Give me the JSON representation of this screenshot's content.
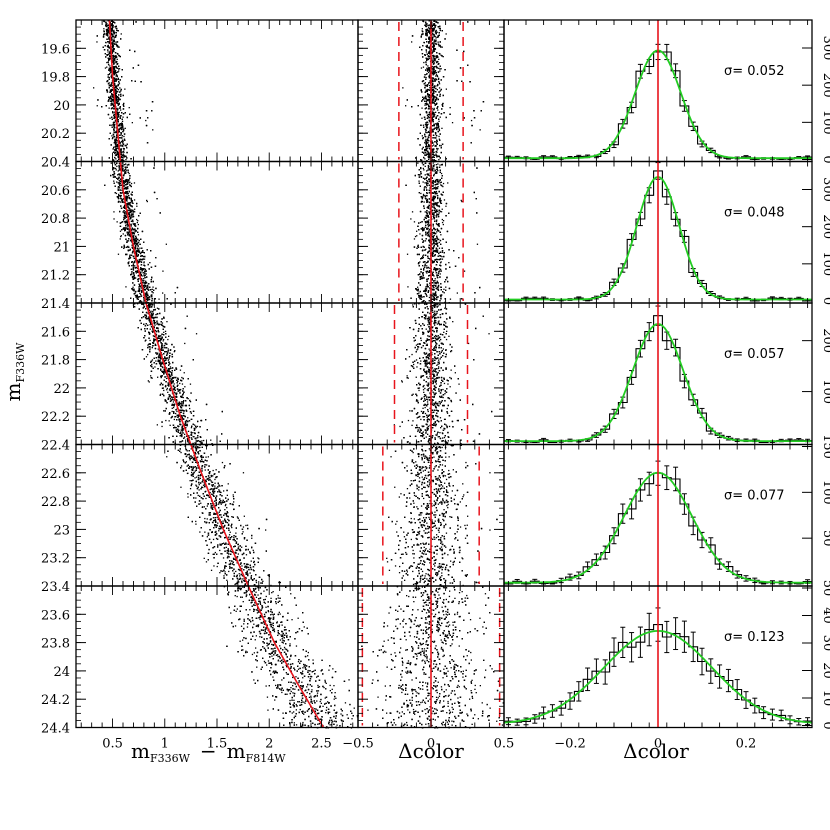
{
  "chart_data": {
    "type": "scatter",
    "description_panels": [
      "cmd",
      "residual",
      "histogram"
    ],
    "labels": {
      "y_main": "m",
      "y_sub": "F336W",
      "x_cmd_main_left": "m",
      "x_cmd_sub_left": "F336W",
      "x_cmd_minus": "−",
      "x_cmd_main_right": "m",
      "x_cmd_sub_right": "F814W",
      "x_residual": "Δcolor",
      "x_histogram": "Δcolor"
    },
    "cmd": {
      "x_range": [
        0.15,
        2.85
      ],
      "x_ticks": [
        "0.5",
        "1",
        "1.5",
        "2",
        "2.5"
      ],
      "x_tick_values": [
        0.5,
        1,
        1.5,
        2,
        2.5
      ],
      "y_range": [
        19.4,
        24.4
      ],
      "y_ticks": [
        "19.6",
        "19.8",
        "20",
        "20.2",
        "20.4",
        "20.6",
        "20.8",
        "21",
        "21.2",
        "21.4",
        "21.6",
        "21.8",
        "22",
        "22.2",
        "22.4",
        "22.6",
        "22.8",
        "23",
        "23.2",
        "23.4",
        "23.6",
        "23.8",
        "24",
        "24.2",
        "24.4"
      ],
      "y_tick_values": [
        19.6,
        19.8,
        20,
        20.2,
        20.4,
        20.6,
        20.8,
        21,
        21.2,
        21.4,
        21.6,
        21.8,
        22,
        22.2,
        22.4,
        22.6,
        22.8,
        23,
        23.2,
        23.4,
        23.6,
        23.8,
        24,
        24.2,
        24.4
      ],
      "fiducial_line": {
        "color": "#e8141c",
        "points": [
          [
            0.47,
            19.4
          ],
          [
            0.5,
            19.8
          ],
          [
            0.55,
            20.2
          ],
          [
            0.6,
            20.6
          ],
          [
            0.7,
            21.0
          ],
          [
            0.82,
            21.4
          ],
          [
            0.98,
            21.8
          ],
          [
            1.15,
            22.2
          ],
          [
            1.35,
            22.6
          ],
          [
            1.56,
            23.0
          ],
          [
            1.8,
            23.4
          ],
          [
            2.05,
            23.8
          ],
          [
            2.28,
            24.1
          ],
          [
            2.52,
            24.4
          ]
        ]
      }
    },
    "residual": {
      "x_range": [
        -0.5,
        0.5
      ],
      "x_ticks": [
        "−0.5",
        "0",
        "0.5"
      ],
      "x_tick_values": [
        -0.5,
        0,
        0.5
      ],
      "dashed_limits": [
        {
          "y_range": [
            19.4,
            20.4
          ],
          "limit": 0.22
        },
        {
          "y_range": [
            20.4,
            21.4
          ],
          "limit": 0.22
        },
        {
          "y_range": [
            21.4,
            22.4
          ],
          "limit": 0.25
        },
        {
          "y_range": [
            22.4,
            23.4
          ],
          "limit": 0.33
        },
        {
          "y_range": [
            23.4,
            24.4
          ],
          "limit": 0.47
        }
      ]
    },
    "histogram": {
      "x_range": [
        -0.35,
        0.35
      ],
      "x_ticks": [
        "−0.2",
        "0",
        "0.2"
      ],
      "x_tick_values": [
        -0.2,
        0,
        0.2
      ],
      "bin_width": 0.02,
      "fit_color": "#22cc22",
      "panels": [
        {
          "sigma_label": "σ=  0.052",
          "sigma": 0.052,
          "peak": 290,
          "y_max": 370,
          "y_ticks": [
            "0",
            "100",
            "200",
            "300"
          ],
          "y_tick_values": [
            0,
            100,
            200,
            300
          ]
        },
        {
          "sigma_label": "σ=  0.048",
          "sigma": 0.048,
          "peak": 330,
          "y_max": 370,
          "y_ticks": [
            "0",
            "100",
            "200",
            "300"
          ],
          "y_tick_values": [
            0,
            100,
            200,
            300
          ]
        },
        {
          "sigma_label": "σ=  0.057",
          "sigma": 0.057,
          "peak": 230,
          "y_max": 270,
          "y_ticks": [
            "100",
            "200"
          ],
          "y_tick_values": [
            100,
            200
          ]
        },
        {
          "sigma_label": "σ=  0.077",
          "sigma": 0.077,
          "peak": 120,
          "y_max": 150,
          "y_ticks": [
            "50",
            "100",
            "150"
          ],
          "y_tick_values": [
            50,
            100,
            150
          ]
        },
        {
          "sigma_label": "σ=  0.123",
          "sigma": 0.123,
          "peak": 34,
          "y_max": 50,
          "y_ticks": [
            "0",
            "10",
            "20",
            "30",
            "40",
            "50"
          ],
          "y_tick_values": [
            0,
            10,
            20,
            30,
            40,
            50
          ]
        }
      ]
    }
  }
}
